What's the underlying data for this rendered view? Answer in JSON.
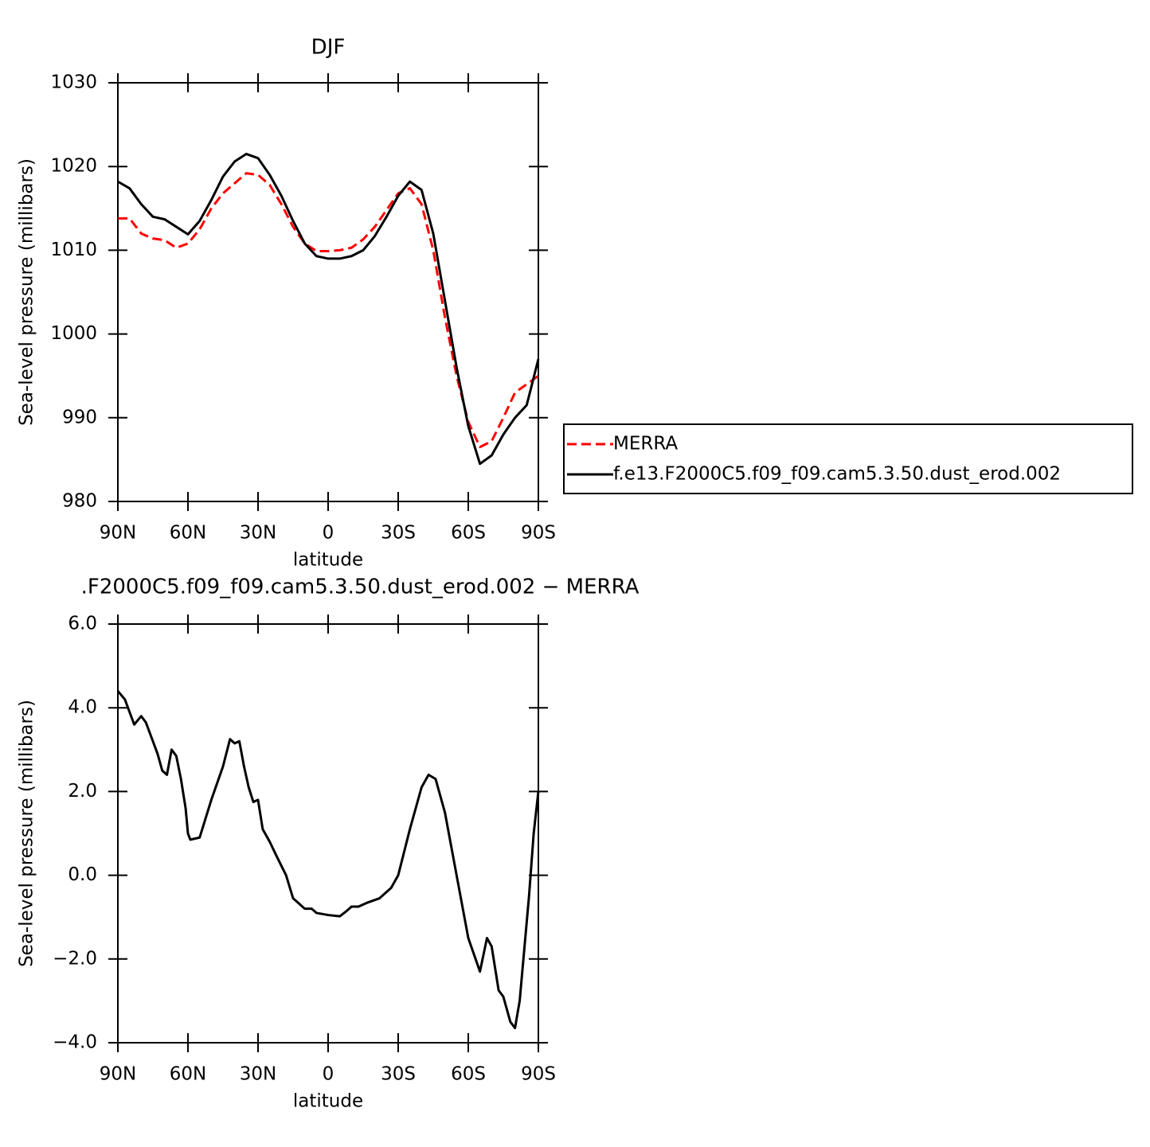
{
  "chart_data": [
    {
      "type": "line",
      "title": "DJF",
      "xlabel": "latitude",
      "ylabel": "Sea-level pressure (millibars)",
      "xlim": [
        90,
        -90
      ],
      "ylim": [
        980,
        1030
      ],
      "xticks": [
        {
          "value": 90,
          "label": "90N"
        },
        {
          "value": 60,
          "label": "60N"
        },
        {
          "value": 30,
          "label": "30N"
        },
        0,
        {
          "value": -30,
          "label": "30S"
        },
        {
          "value": -60,
          "label": "60S"
        },
        {
          "value": -90,
          "label": "90S"
        }
      ],
      "yticks": [
        980,
        990,
        1000,
        1010,
        1020,
        1030
      ],
      "legend": "right",
      "x": [
        90,
        85,
        80,
        75,
        70,
        65,
        60,
        55,
        50,
        45,
        40,
        35,
        30,
        25,
        20,
        15,
        10,
        5,
        0,
        -5,
        -10,
        -15,
        -20,
        -25,
        -30,
        -35,
        -40,
        -45,
        -50,
        -55,
        -60,
        -65,
        -70,
        -75,
        -80,
        -85,
        -90
      ],
      "series": [
        {
          "name": "MERRA",
          "color": "#ff0000",
          "linestyle": "dashed",
          "values": [
            1013.8,
            1013.8,
            1012.0,
            1011.4,
            1011.2,
            1010.3,
            1010.8,
            1012.5,
            1015.0,
            1016.8,
            1018.0,
            1019.2,
            1019.0,
            1017.8,
            1015.5,
            1012.8,
            1010.8,
            1009.9,
            1009.9,
            1010.0,
            1010.3,
            1011.3,
            1012.8,
            1014.8,
            1016.8,
            1017.4,
            1015.5,
            1010.0,
            1002.0,
            995.0,
            989.5,
            986.5,
            987.2,
            990.0,
            993.0,
            994.0,
            995.0
          ]
        },
        {
          "name": "f.e13.F2000C5.f09_f09.cam5.3.50.dust_erod.002",
          "color": "#000000",
          "linestyle": "solid",
          "values": [
            1018.2,
            1017.4,
            1015.5,
            1014.0,
            1013.7,
            1012.8,
            1011.9,
            1013.5,
            1016.0,
            1018.8,
            1020.6,
            1021.5,
            1021.0,
            1019.0,
            1016.5,
            1013.5,
            1010.8,
            1009.3,
            1009.0,
            1009.0,
            1009.3,
            1010.0,
            1011.7,
            1014.0,
            1016.5,
            1018.2,
            1017.2,
            1012.0,
            1004.0,
            996.0,
            989.0,
            984.5,
            985.5,
            988.0,
            990.0,
            991.5,
            997.0
          ]
        }
      ]
    },
    {
      "type": "line",
      "title": ".F2000C5.f09_f09.cam5.3.50.dust_erod.002 − MERRA",
      "xlabel": "latitude",
      "ylabel": "Sea-level pressure (millibars)",
      "xlim": [
        90,
        -90
      ],
      "ylim": [
        -4,
        6
      ],
      "xticks": [
        {
          "value": 90,
          "label": "90N"
        },
        {
          "value": 60,
          "label": "60N"
        },
        {
          "value": 30,
          "label": "30N"
        },
        0,
        {
          "value": -30,
          "label": "30S"
        },
        {
          "value": -60,
          "label": "60S"
        },
        {
          "value": -90,
          "label": "90S"
        }
      ],
      "yticks": [
        {
          "value": -4,
          "label": "−4.0"
        },
        {
          "value": -2,
          "label": "−2.0"
        },
        {
          "value": 0,
          "label": "0.0"
        },
        {
          "value": 2,
          "label": "2.0"
        },
        {
          "value": 4,
          "label": "4.0"
        },
        {
          "value": 6,
          "label": "6.0"
        }
      ],
      "x": [
        90,
        87,
        83,
        80,
        78,
        75,
        73,
        71,
        69,
        67,
        65,
        63,
        61,
        60,
        59,
        55,
        50,
        45,
        42,
        40,
        38,
        36,
        34,
        32,
        30,
        28,
        25,
        22,
        18,
        15,
        13,
        10,
        7,
        5,
        0,
        -5,
        -8,
        -10,
        -13,
        -17,
        -22,
        -27,
        -30,
        -35,
        -40,
        -43,
        -46,
        -50,
        -55,
        -60,
        -65,
        -68,
        -70,
        -73,
        -75,
        -78,
        -80,
        -82,
        -86,
        -88,
        -90
      ],
      "series": [
        {
          "color": "#000000",
          "linestyle": "solid",
          "values": [
            4.4,
            4.2,
            3.6,
            3.8,
            3.65,
            3.2,
            2.9,
            2.5,
            2.4,
            3.0,
            2.85,
            2.3,
            1.6,
            1.0,
            0.85,
            0.9,
            1.8,
            2.6,
            3.25,
            3.15,
            3.2,
            2.6,
            2.1,
            1.75,
            1.8,
            1.1,
            0.8,
            0.45,
            0.0,
            -0.55,
            -0.65,
            -0.8,
            -0.8,
            -0.9,
            -0.95,
            -0.98,
            -0.85,
            -0.75,
            -0.75,
            -0.65,
            -0.55,
            -0.3,
            0.0,
            1.1,
            2.1,
            2.4,
            2.3,
            1.5,
            0.0,
            -1.5,
            -2.3,
            -1.5,
            -1.7,
            -2.75,
            -2.9,
            -3.5,
            -3.65,
            -3.0,
            -0.5,
            1.0,
            2.0
          ]
        }
      ]
    }
  ]
}
